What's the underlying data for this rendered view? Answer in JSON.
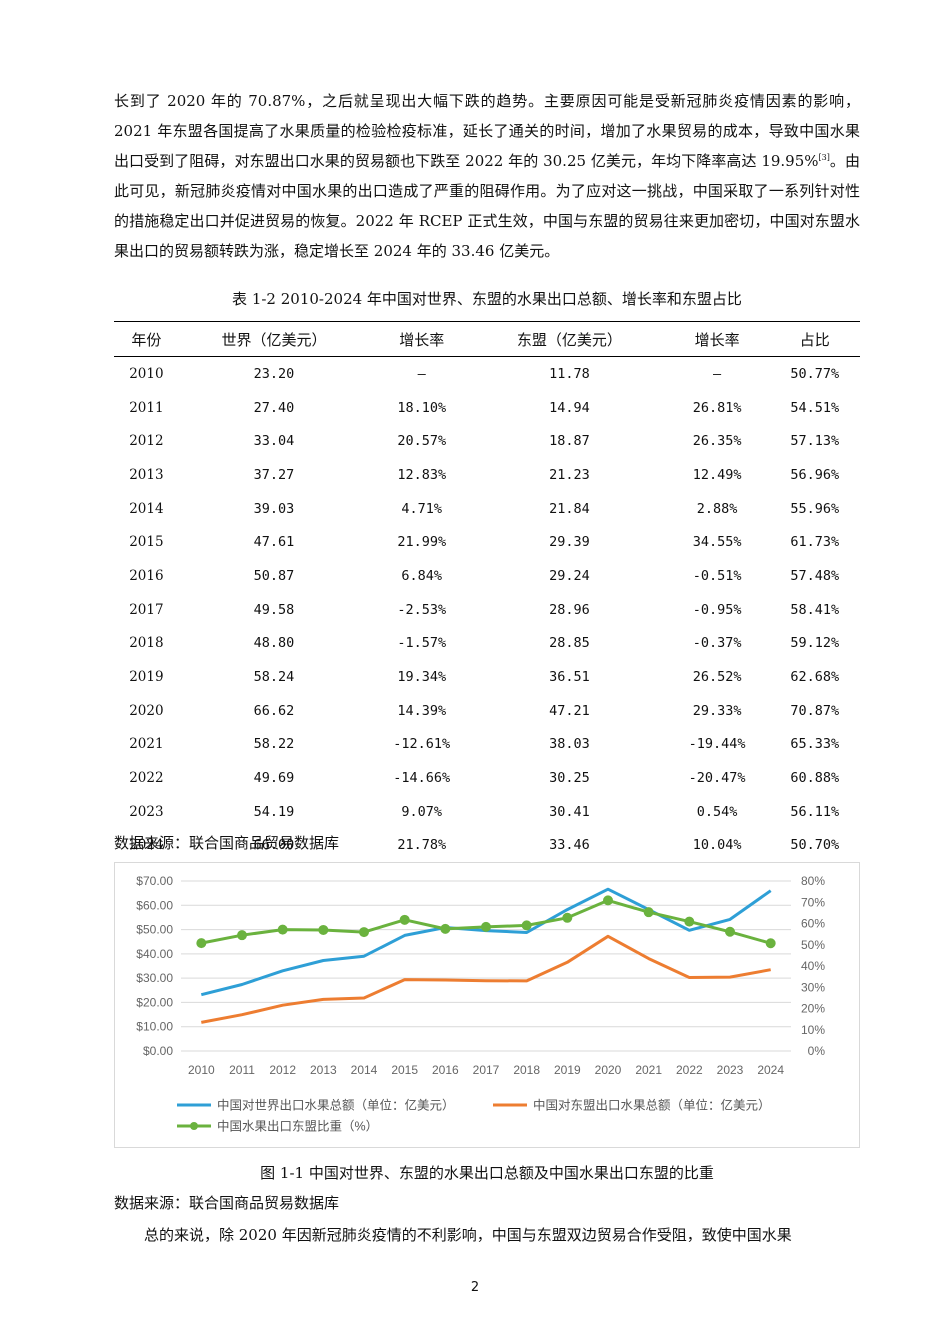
{
  "paragraphs": {
    "p1_a": "长到了 2020 年的 70.87%，之后就呈现出大幅下跌的趋势。主要原因可能是受新冠肺炎疫情因素的影响，2021 年东盟各国提高了水果质量的检验检疫标准，延长了通关的时间，增加了水果贸易的成本，导致中国水果出口受到了阻碍，对东盟出口水果的贸易额也下跌至 2022 年的 30.25 亿美元，年均下降率高达 19.95%",
    "p1_ref": "[3]",
    "p1_b": "。由此可见，新冠肺炎疫情对中国水果的出口造成了严重的阻碍作用。为了应对这一挑战，中国采取了一系列针对性的措施稳定出口并促进贸易的恢复。2022 年 RCEP 正式生效，中国与东盟的贸易往来更加密切，中国对东盟水果出口的贸易额转跌为涨，稳定增长至 2024 年的 33.46 亿美元。",
    "p2": "总的来说，除 2020 年因新冠肺炎疫情的不利影响，中国与东盟双边贸易合作受阻，致使中国水果"
  },
  "table": {
    "caption": "表 1-2  2010-2024 年中国对世界、东盟的水果出口总额、增长率和东盟占比",
    "headers": [
      "年份",
      "世界（亿美元）",
      "增长率",
      "东盟（亿美元）",
      "增长率",
      "占比"
    ],
    "rows": [
      [
        "2010",
        "23.20",
        "—",
        "11.78",
        "—",
        "50.77%"
      ],
      [
        "2011",
        "27.40",
        "18.10%",
        "14.94",
        "26.81%",
        "54.51%"
      ],
      [
        "2012",
        "33.04",
        "20.57%",
        "18.87",
        "26.35%",
        "57.13%"
      ],
      [
        "2013",
        "37.27",
        "12.83%",
        "21.23",
        "12.49%",
        "56.96%"
      ],
      [
        "2014",
        "39.03",
        "4.71%",
        "21.84",
        "2.88%",
        "55.96%"
      ],
      [
        "2015",
        "47.61",
        "21.99%",
        "29.39",
        "34.55%",
        "61.73%"
      ],
      [
        "2016",
        "50.87",
        "6.84%",
        "29.24",
        "-0.51%",
        "57.48%"
      ],
      [
        "2017",
        "49.58",
        "-2.53%",
        "28.96",
        "-0.95%",
        "58.41%"
      ],
      [
        "2018",
        "48.80",
        "-1.57%",
        "28.85",
        "-0.37%",
        "59.12%"
      ],
      [
        "2019",
        "58.24",
        "19.34%",
        "36.51",
        "26.52%",
        "62.68%"
      ],
      [
        "2020",
        "66.62",
        "14.39%",
        "47.21",
        "29.33%",
        "70.87%"
      ],
      [
        "2021",
        "58.22",
        "-12.61%",
        "38.03",
        "-19.44%",
        "65.33%"
      ],
      [
        "2022",
        "49.69",
        "-14.66%",
        "30.25",
        "-20.47%",
        "60.88%"
      ],
      [
        "2023",
        "54.19",
        "9.07%",
        "30.41",
        "0.54%",
        "56.11%"
      ],
      [
        "2024",
        "66.00",
        "21.78%",
        "33.46",
        "10.04%",
        "50.70%"
      ]
    ],
    "source": "数据来源：联合国商品贸易数据库"
  },
  "figure": {
    "caption": "图 1-1  中国对世界、东盟的水果出口总额及中国水果出口东盟的比重",
    "source": "数据来源：联合国商品贸易数据库"
  },
  "chart_data": {
    "type": "line",
    "x": [
      "2010",
      "2011",
      "2012",
      "2013",
      "2014",
      "2015",
      "2016",
      "2017",
      "2018",
      "2019",
      "2020",
      "2021",
      "2022",
      "2023",
      "2024"
    ],
    "series": [
      {
        "name": "中国对世界出口水果总额（单位：亿美元）",
        "axis": "left",
        "color": "#2e9fd6",
        "values": [
          23.2,
          27.4,
          33.04,
          37.27,
          39.03,
          47.61,
          50.87,
          49.58,
          48.8,
          58.24,
          66.62,
          58.22,
          49.69,
          54.19,
          66.0
        ]
      },
      {
        "name": "中国对东盟出口水果总额（单位：亿美元）",
        "axis": "left",
        "color": "#ed7d31",
        "values": [
          11.78,
          14.94,
          18.87,
          21.23,
          21.84,
          29.39,
          29.24,
          28.96,
          28.85,
          36.51,
          47.21,
          38.03,
          30.25,
          30.41,
          33.46
        ]
      },
      {
        "name": "中国水果出口东盟比重（%）",
        "axis": "right",
        "color": "#6ab23e",
        "markers": true,
        "values": [
          50.77,
          54.51,
          57.13,
          56.96,
          55.96,
          61.73,
          57.48,
          58.41,
          59.12,
          62.68,
          70.87,
          65.33,
          60.88,
          56.11,
          50.7
        ]
      }
    ],
    "y_left": {
      "ticks": [
        "$0.00",
        "$10.00",
        "$20.00",
        "$30.00",
        "$40.00",
        "$50.00",
        "$60.00",
        "$70.00"
      ],
      "lim": [
        0,
        70
      ]
    },
    "y_right": {
      "ticks": [
        "0%",
        "10%",
        "20%",
        "30%",
        "40%",
        "50%",
        "60%",
        "70%",
        "80%"
      ],
      "lim": [
        0,
        80
      ]
    },
    "grid": true,
    "legend": "bottom"
  },
  "page_number": "2"
}
